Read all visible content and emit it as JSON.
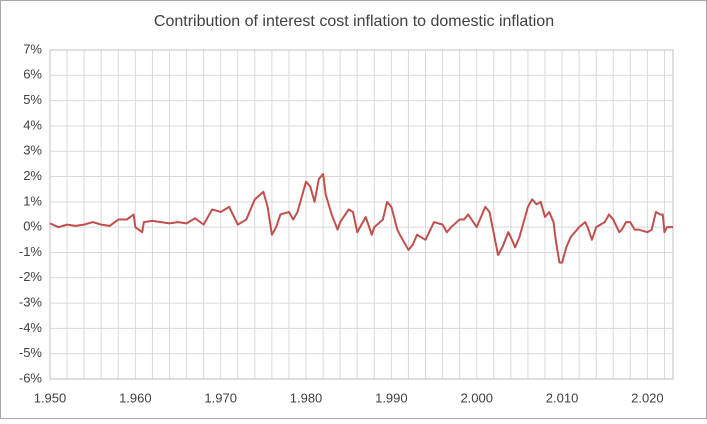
{
  "chart_data": {
    "type": "line",
    "title": "Contribution of interest cost inflation to domestic inflation",
    "x": [
      1950,
      1951,
      1952,
      1953,
      1954,
      1955,
      1956,
      1957,
      1958,
      1959,
      1959.8,
      1960,
      1960.8,
      1961,
      1962,
      1963,
      1964,
      1965,
      1966,
      1967,
      1968,
      1969,
      1970,
      1971,
      1972,
      1973,
      1974,
      1975,
      1975.5,
      1976,
      1976.5,
      1977,
      1978,
      1978.5,
      1979,
      1980,
      1980.5,
      1981,
      1981.5,
      1982,
      1982.3,
      1983,
      1983.7,
      1984,
      1985,
      1985.5,
      1986,
      1987,
      1987.7,
      1988,
      1989,
      1989.5,
      1990,
      1990.7,
      1991,
      1992,
      1992.5,
      1993,
      1993.5,
      1994,
      1995,
      1996,
      1996.5,
      1997,
      1998,
      1998.5,
      1999,
      2000,
      2000.5,
      2001,
      2001.5,
      2002.5,
      2003,
      2003.7,
      2004,
      2004.5,
      2005,
      2006,
      2006.5,
      2007,
      2007.5,
      2008,
      2008.5,
      2009,
      2009.3,
      2009.7,
      2010,
      2010.5,
      2011,
      2012,
      2012.7,
      2013,
      2013.5,
      2014,
      2015,
      2015.5,
      2016,
      2016.7,
      2017,
      2017.5,
      2018,
      2018.5,
      2019,
      2020,
      2020.5,
      2021,
      2021.5,
      2021.8,
      2022,
      2022.3,
      2023
    ],
    "series": [
      {
        "name": "Contribution",
        "color": "#c0504d",
        "values": [
          0.15,
          0.0,
          0.1,
          0.05,
          0.1,
          0.2,
          0.1,
          0.05,
          0.3,
          0.3,
          0.5,
          0.0,
          -0.2,
          0.2,
          0.25,
          0.2,
          0.15,
          0.2,
          0.15,
          0.35,
          0.1,
          0.7,
          0.6,
          0.8,
          0.1,
          0.3,
          1.1,
          1.4,
          0.8,
          -0.3,
          0.0,
          0.5,
          0.6,
          0.3,
          0.6,
          1.8,
          1.6,
          1.0,
          1.9,
          2.1,
          1.3,
          0.5,
          -0.1,
          0.2,
          0.7,
          0.6,
          -0.2,
          0.4,
          -0.3,
          0.0,
          0.3,
          1.0,
          0.8,
          -0.1,
          -0.3,
          -0.9,
          -0.7,
          -0.3,
          -0.4,
          -0.5,
          0.2,
          0.1,
          -0.2,
          0.0,
          0.3,
          0.3,
          0.5,
          0.0,
          0.4,
          0.8,
          0.6,
          -1.1,
          -0.8,
          -0.2,
          -0.4,
          -0.8,
          -0.4,
          0.8,
          1.1,
          0.9,
          1.0,
          0.4,
          0.6,
          0.2,
          -0.6,
          -1.4,
          -1.4,
          -0.8,
          -0.4,
          0.0,
          0.2,
          0.0,
          -0.5,
          0.0,
          0.2,
          0.5,
          0.3,
          -0.2,
          -0.1,
          0.2,
          0.2,
          -0.1,
          -0.1,
          -0.2,
          -0.1,
          0.6,
          0.5,
          0.5,
          -0.2,
          0.0,
          0.0
        ]
      }
    ],
    "xlim": [
      1950,
      2023
    ],
    "xticks": [
      {
        "value": 1950,
        "label": "1.950"
      },
      {
        "value": 1960,
        "label": "1.960"
      },
      {
        "value": 1970,
        "label": "1.970"
      },
      {
        "value": 1980,
        "label": "1.980"
      },
      {
        "value": 1990,
        "label": "1.990"
      },
      {
        "value": 2000,
        "label": "2.000"
      },
      {
        "value": 2010,
        "label": "2.010"
      },
      {
        "value": 2020,
        "label": "2.020"
      }
    ],
    "xminor": [
      1952,
      1954,
      1956,
      1958,
      1962,
      1964,
      1966,
      1968,
      1972,
      1974,
      1976,
      1978,
      1982,
      1984,
      1986,
      1988,
      1992,
      1994,
      1996,
      1998,
      2002,
      2004,
      2006,
      2008,
      2012,
      2014,
      2016,
      2018,
      2022
    ],
    "ylim": [
      -6,
      7
    ],
    "yticks": [
      {
        "value": -6,
        "label": "-6%"
      },
      {
        "value": -5,
        "label": "-5%"
      },
      {
        "value": -4,
        "label": "-4%"
      },
      {
        "value": -3,
        "label": "-3%"
      },
      {
        "value": -2,
        "label": "-2%"
      },
      {
        "value": -1,
        "label": "-1%"
      },
      {
        "value": 0,
        "label": "0%"
      },
      {
        "value": 1,
        "label": "1%"
      },
      {
        "value": 2,
        "label": "2%"
      },
      {
        "value": 3,
        "label": "3%"
      },
      {
        "value": 4,
        "label": "4%"
      },
      {
        "value": 5,
        "label": "5%"
      },
      {
        "value": 6,
        "label": "6%"
      },
      {
        "value": 7,
        "label": "7%"
      }
    ],
    "grid": true
  }
}
